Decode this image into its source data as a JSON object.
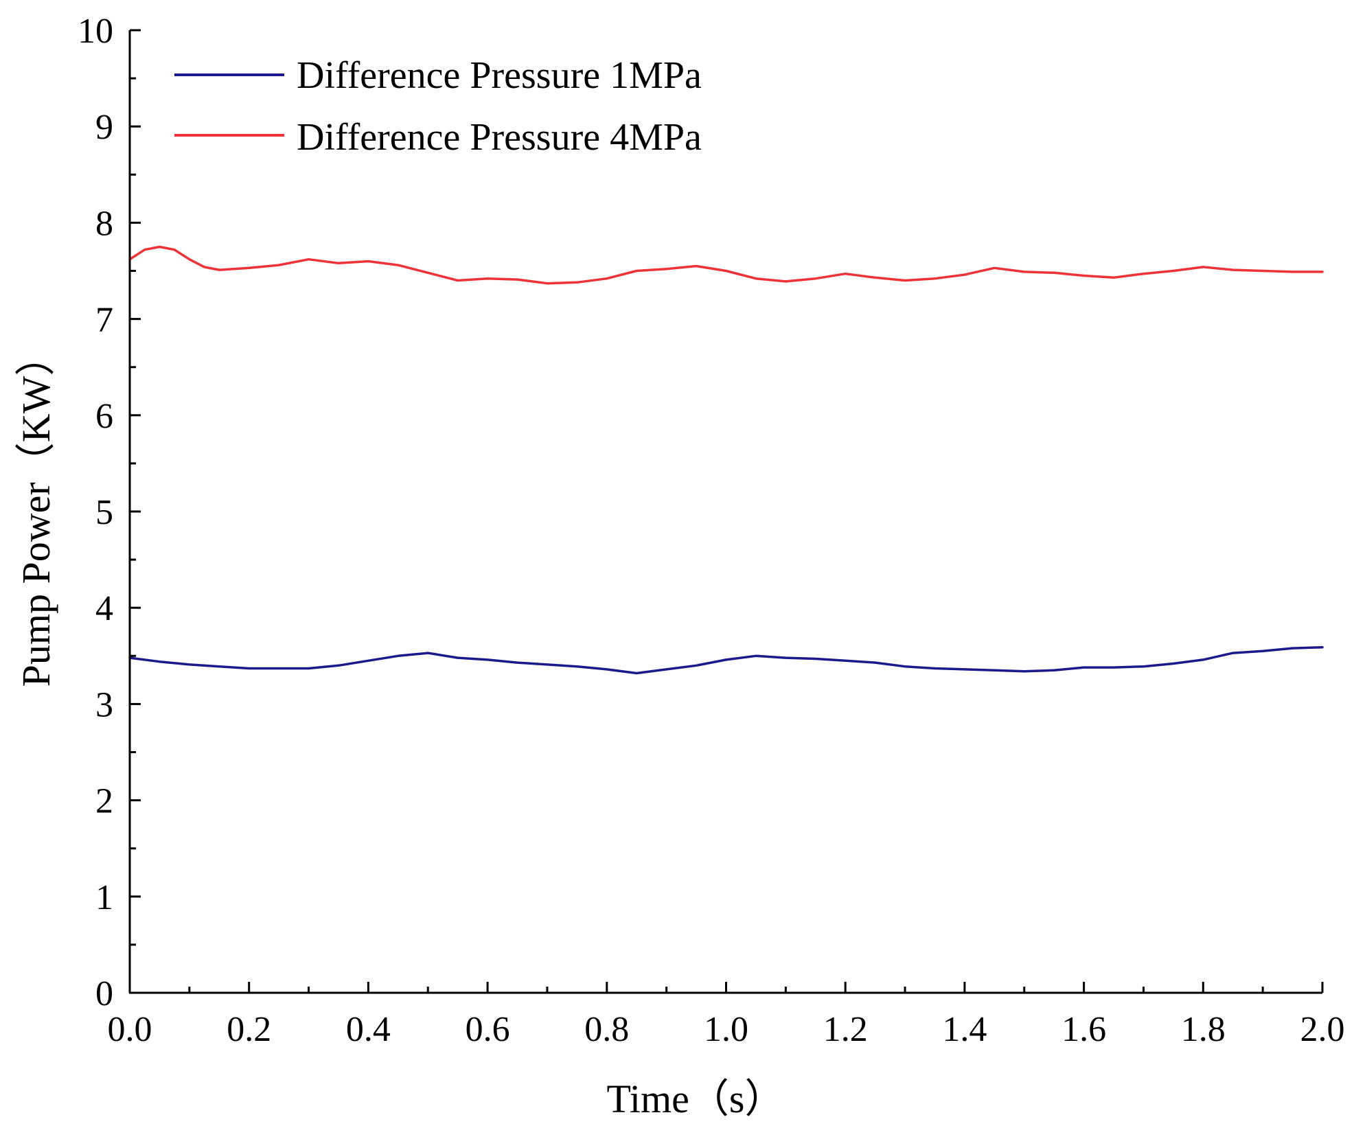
{
  "chart_data": {
    "type": "line",
    "title": "",
    "xlabel": "Time（s）",
    "ylabel": "Pump Power（KW）",
    "xlim": [
      0.0,
      2.0
    ],
    "ylim": [
      0,
      10
    ],
    "x_ticks": [
      "0.0",
      "0.2",
      "0.4",
      "0.6",
      "0.8",
      "1.0",
      "1.2",
      "1.4",
      "1.6",
      "1.8",
      "2.0"
    ],
    "y_ticks": [
      "0",
      "1",
      "2",
      "3",
      "4",
      "5",
      "6",
      "7",
      "8",
      "9",
      "10"
    ],
    "grid": false,
    "legend_position": "top-left",
    "series": [
      {
        "name": "Difference Pressure 1MPa",
        "color": "#1a1a8c",
        "x": [
          0.0,
          0.05,
          0.1,
          0.15,
          0.2,
          0.25,
          0.3,
          0.35,
          0.4,
          0.45,
          0.5,
          0.55,
          0.6,
          0.65,
          0.7,
          0.75,
          0.8,
          0.85,
          0.9,
          0.95,
          1.0,
          1.05,
          1.1,
          1.15,
          1.2,
          1.25,
          1.3,
          1.35,
          1.4,
          1.45,
          1.5,
          1.55,
          1.6,
          1.65,
          1.7,
          1.75,
          1.8,
          1.85,
          1.9,
          1.95,
          2.0
        ],
        "values": [
          3.48,
          3.44,
          3.41,
          3.39,
          3.37,
          3.37,
          3.37,
          3.4,
          3.45,
          3.5,
          3.53,
          3.48,
          3.46,
          3.43,
          3.41,
          3.39,
          3.36,
          3.32,
          3.36,
          3.4,
          3.46,
          3.5,
          3.48,
          3.47,
          3.45,
          3.43,
          3.39,
          3.37,
          3.36,
          3.35,
          3.34,
          3.35,
          3.38,
          3.38,
          3.39,
          3.42,
          3.46,
          3.53,
          3.55,
          3.58,
          3.59
        ]
      },
      {
        "name": "Difference Pressure 4MPa",
        "color": "#ee3338",
        "x": [
          0.0,
          0.025,
          0.05,
          0.075,
          0.1,
          0.125,
          0.15,
          0.2,
          0.25,
          0.3,
          0.35,
          0.4,
          0.45,
          0.5,
          0.55,
          0.6,
          0.65,
          0.7,
          0.75,
          0.8,
          0.85,
          0.9,
          0.95,
          1.0,
          1.05,
          1.1,
          1.15,
          1.2,
          1.25,
          1.3,
          1.35,
          1.4,
          1.45,
          1.5,
          1.55,
          1.6,
          1.65,
          1.7,
          1.75,
          1.8,
          1.85,
          1.9,
          1.95,
          2.0
        ],
        "values": [
          7.62,
          7.72,
          7.75,
          7.72,
          7.62,
          7.54,
          7.51,
          7.53,
          7.56,
          7.62,
          7.58,
          7.6,
          7.56,
          7.48,
          7.4,
          7.42,
          7.41,
          7.37,
          7.38,
          7.42,
          7.5,
          7.52,
          7.55,
          7.5,
          7.42,
          7.39,
          7.42,
          7.47,
          7.43,
          7.4,
          7.42,
          7.46,
          7.53,
          7.49,
          7.48,
          7.45,
          7.43,
          7.47,
          7.5,
          7.54,
          7.51,
          7.5,
          7.49,
          7.49
        ]
      }
    ]
  }
}
